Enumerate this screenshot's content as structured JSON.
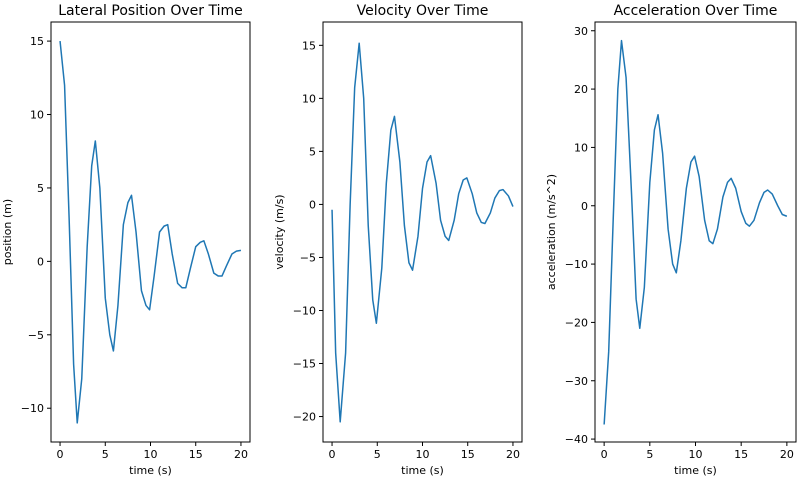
{
  "chart_data": [
    {
      "type": "line",
      "title": "Lateral Position Over Time",
      "xlabel": "time (s)",
      "ylabel": "position (m)",
      "xlim": [
        -1,
        21
      ],
      "ylim": [
        -12.3,
        16.3
      ],
      "xticks": [
        0,
        5,
        10,
        15,
        20
      ],
      "yticks": [
        -10,
        -5,
        0,
        5,
        10,
        15
      ],
      "ytick_labels": [
        "−10",
        "−5",
        "0",
        "5",
        "10",
        "15"
      ],
      "grid": false,
      "x": [
        0,
        0.5,
        1.0,
        1.5,
        1.9,
        2.4,
        3.0,
        3.5,
        3.9,
        4.4,
        5.0,
        5.5,
        5.9,
        6.4,
        7.0,
        7.5,
        7.9,
        8.4,
        9.0,
        9.5,
        9.9,
        10.4,
        11.0,
        11.5,
        11.9,
        12.4,
        13.0,
        13.5,
        13.9,
        14.4,
        15.0,
        15.5,
        15.9,
        16.4,
        17.0,
        17.5,
        17.9,
        18.4,
        19.0,
        19.5,
        20.0
      ],
      "y": [
        15.0,
        12.0,
        3.0,
        -7.0,
        -11.0,
        -8.0,
        1.0,
        6.5,
        8.2,
        5.0,
        -2.5,
        -5.0,
        -6.1,
        -3.0,
        2.5,
        4.0,
        4.5,
        2.0,
        -2.0,
        -3.0,
        -3.3,
        -1.0,
        2.0,
        2.4,
        2.5,
        0.5,
        -1.5,
        -1.8,
        -1.8,
        -0.5,
        1.0,
        1.3,
        1.4,
        0.5,
        -0.8,
        -1.0,
        -1.0,
        -0.3,
        0.5,
        0.7,
        0.75
      ]
    },
    {
      "type": "line",
      "title": "Velocity Over Time",
      "xlabel": "time (s)",
      "ylabel": "velocity (m/s)",
      "xlim": [
        -1,
        21
      ],
      "ylim": [
        -22.4,
        17.2
      ],
      "xticks": [
        0,
        5,
        10,
        15,
        20
      ],
      "yticks": [
        -20,
        -15,
        -10,
        -5,
        0,
        5,
        10,
        15
      ],
      "ytick_labels": [
        "−20",
        "−15",
        "−10",
        "−5",
        "0",
        "5",
        "10",
        "15"
      ],
      "grid": false,
      "x": [
        0,
        0.4,
        0.9,
        1.5,
        2.0,
        2.5,
        3.0,
        3.5,
        4.0,
        4.5,
        4.9,
        5.5,
        6.0,
        6.5,
        6.9,
        7.5,
        8.0,
        8.5,
        8.9,
        9.5,
        10.0,
        10.5,
        10.9,
        11.5,
        12.0,
        12.5,
        12.9,
        13.5,
        14.0,
        14.5,
        14.9,
        15.5,
        16.0,
        16.5,
        16.9,
        17.5,
        18.0,
        18.5,
        18.9,
        19.5,
        20.0
      ],
      "y": [
        -0.5,
        -14.0,
        -20.5,
        -14.0,
        0.0,
        11.0,
        15.2,
        10.0,
        -2.0,
        -9.0,
        -11.2,
        -6.0,
        2.0,
        7.0,
        8.3,
        4.0,
        -2.0,
        -5.5,
        -6.2,
        -3.0,
        1.5,
        4.0,
        4.6,
        2.0,
        -1.5,
        -3.0,
        -3.4,
        -1.5,
        1.0,
        2.3,
        2.5,
        1.0,
        -0.8,
        -1.7,
        -1.8,
        -0.8,
        0.6,
        1.3,
        1.4,
        0.8,
        -0.2
      ]
    },
    {
      "type": "line",
      "title": "Acceleration Over Time",
      "xlabel": "time (s)",
      "ylabel": "acceleration (m/s^2)",
      "xlim": [
        -1,
        21
      ],
      "ylim": [
        -40.5,
        31.5
      ],
      "xticks": [
        0,
        5,
        10,
        15,
        20
      ],
      "yticks": [
        -40,
        -30,
        -20,
        -10,
        0,
        10,
        20,
        30
      ],
      "ytick_labels": [
        "−40",
        "−30",
        "−20",
        "−10",
        "0",
        "10",
        "20",
        "30"
      ],
      "grid": false,
      "x": [
        0,
        0.5,
        1.0,
        1.5,
        1.9,
        2.4,
        3.0,
        3.5,
        3.9,
        4.4,
        5.0,
        5.5,
        5.9,
        6.4,
        7.0,
        7.5,
        7.9,
        8.4,
        9.0,
        9.5,
        9.9,
        10.4,
        11.0,
        11.5,
        11.9,
        12.4,
        13.0,
        13.5,
        13.9,
        14.4,
        15.0,
        15.5,
        15.9,
        16.4,
        17.0,
        17.5,
        17.9,
        18.4,
        19.0,
        19.5,
        20.0
      ],
      "y": [
        -37.5,
        -25.0,
        -2.0,
        20.0,
        28.3,
        22.0,
        2.0,
        -16.0,
        -21.0,
        -14.0,
        4.0,
        13.0,
        15.6,
        9.0,
        -4.0,
        -10.0,
        -11.5,
        -6.0,
        3.0,
        7.5,
        8.5,
        5.0,
        -2.5,
        -6.0,
        -6.5,
        -4.0,
        1.5,
        4.0,
        4.7,
        3.0,
        -1.0,
        -3.0,
        -3.5,
        -2.5,
        0.5,
        2.3,
        2.7,
        2.0,
        0.0,
        -1.5,
        -1.8
      ]
    }
  ]
}
